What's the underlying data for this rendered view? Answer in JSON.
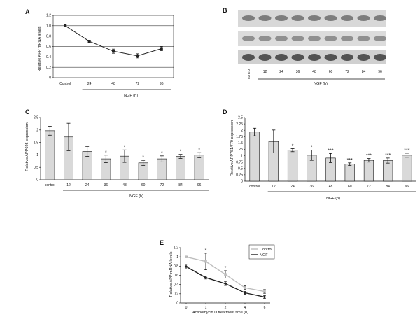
{
  "panel_labels": [
    "A",
    "B",
    "C",
    "D",
    "E"
  ],
  "chart_data": [
    {
      "id": "A",
      "type": "line",
      "ylabel": "Relative APP mRNA levels",
      "xlabel": "NGF (h)",
      "categories": [
        "Control",
        "24",
        "48",
        "72",
        "96"
      ],
      "values": [
        1.0,
        0.7,
        0.51,
        0.42,
        0.56
      ],
      "errors": [
        0.0,
        0.02,
        0.04,
        0.04,
        0.04
      ],
      "ylim": [
        0,
        1.2
      ],
      "yticks": [
        "0",
        "0.2",
        "0.4",
        "0.6",
        "0.8",
        "1.0",
        "1.2"
      ],
      "grid": true,
      "color": "#222222"
    },
    {
      "id": "B",
      "type": "blot",
      "lanes": [
        "control",
        "12",
        "24",
        "36",
        "48",
        "60",
        "72",
        "84",
        "96"
      ],
      "xlabel": "NGF (h)",
      "rows": 3
    },
    {
      "id": "C",
      "type": "bar",
      "ylabel": "Relative APP695 expression",
      "xlabel": "NGF (h)",
      "categories": [
        "control",
        "12",
        "24",
        "36",
        "48",
        "60",
        "72",
        "84",
        "96"
      ],
      "values": [
        1.97,
        1.72,
        1.14,
        0.84,
        0.95,
        0.68,
        0.84,
        0.94,
        0.99
      ],
      "errors": [
        0.18,
        0.55,
        0.2,
        0.15,
        0.25,
        0.1,
        0.12,
        0.08,
        0.1
      ],
      "marks": [
        "",
        "",
        "",
        "*",
        "*",
        "*",
        "*",
        "*",
        "*"
      ],
      "ylim": [
        0,
        2.5
      ],
      "yticks": [
        "0",
        "0.5",
        "1",
        "1.5",
        "2",
        "2.5"
      ],
      "color": "#d9d9d9"
    },
    {
      "id": "D",
      "type": "bar",
      "ylabel": "Relative APP751/770 expression",
      "xlabel": "NGF (h)",
      "categories": [
        "control",
        "12",
        "24",
        "36",
        "48",
        "60",
        "72",
        "84",
        "96"
      ],
      "values": [
        1.93,
        1.56,
        1.22,
        1.02,
        0.91,
        0.67,
        0.82,
        0.81,
        1.02
      ],
      "errors": [
        0.15,
        0.45,
        0.06,
        0.2,
        0.18,
        0.05,
        0.07,
        0.1,
        0.08
      ],
      "marks": [
        "",
        "",
        "*",
        "*",
        "***",
        "***",
        "***",
        "***",
        "***"
      ],
      "ylim": [
        0,
        2.5
      ],
      "yticks": [
        "0",
        "0.25",
        "0.5",
        "0.75",
        "1",
        "1.25",
        "1.5",
        "1.75",
        "2",
        "2.25",
        "2.5"
      ],
      "color": "#d9d9d9"
    },
    {
      "id": "E",
      "type": "line",
      "ylabel": "Relative APP mRNA levels",
      "xlabel": "Actinomycin D treatment time (h)",
      "x": [
        0,
        1,
        2,
        4,
        6
      ],
      "ylim": [
        0,
        1.2
      ],
      "yticks": [
        "0",
        "0.2",
        "0.4",
        "0.6",
        "0.8",
        "1",
        "1.2"
      ],
      "legend": "top-right",
      "series": [
        {
          "name": "Control",
          "values": [
            1.0,
            0.9,
            0.62,
            0.33,
            0.25
          ],
          "errors": [
            0.01,
            0.18,
            0.08,
            0.04,
            0.04
          ],
          "color": "#bdbdbd"
        },
        {
          "name": "NGF",
          "values": [
            0.79,
            0.55,
            0.42,
            0.22,
            0.13
          ],
          "errors": [
            0.05,
            0.03,
            0.04,
            0.03,
            0.03
          ],
          "color": "#222222"
        }
      ],
      "marks": [
        "",
        "*",
        "*",
        "",
        ""
      ]
    }
  ]
}
